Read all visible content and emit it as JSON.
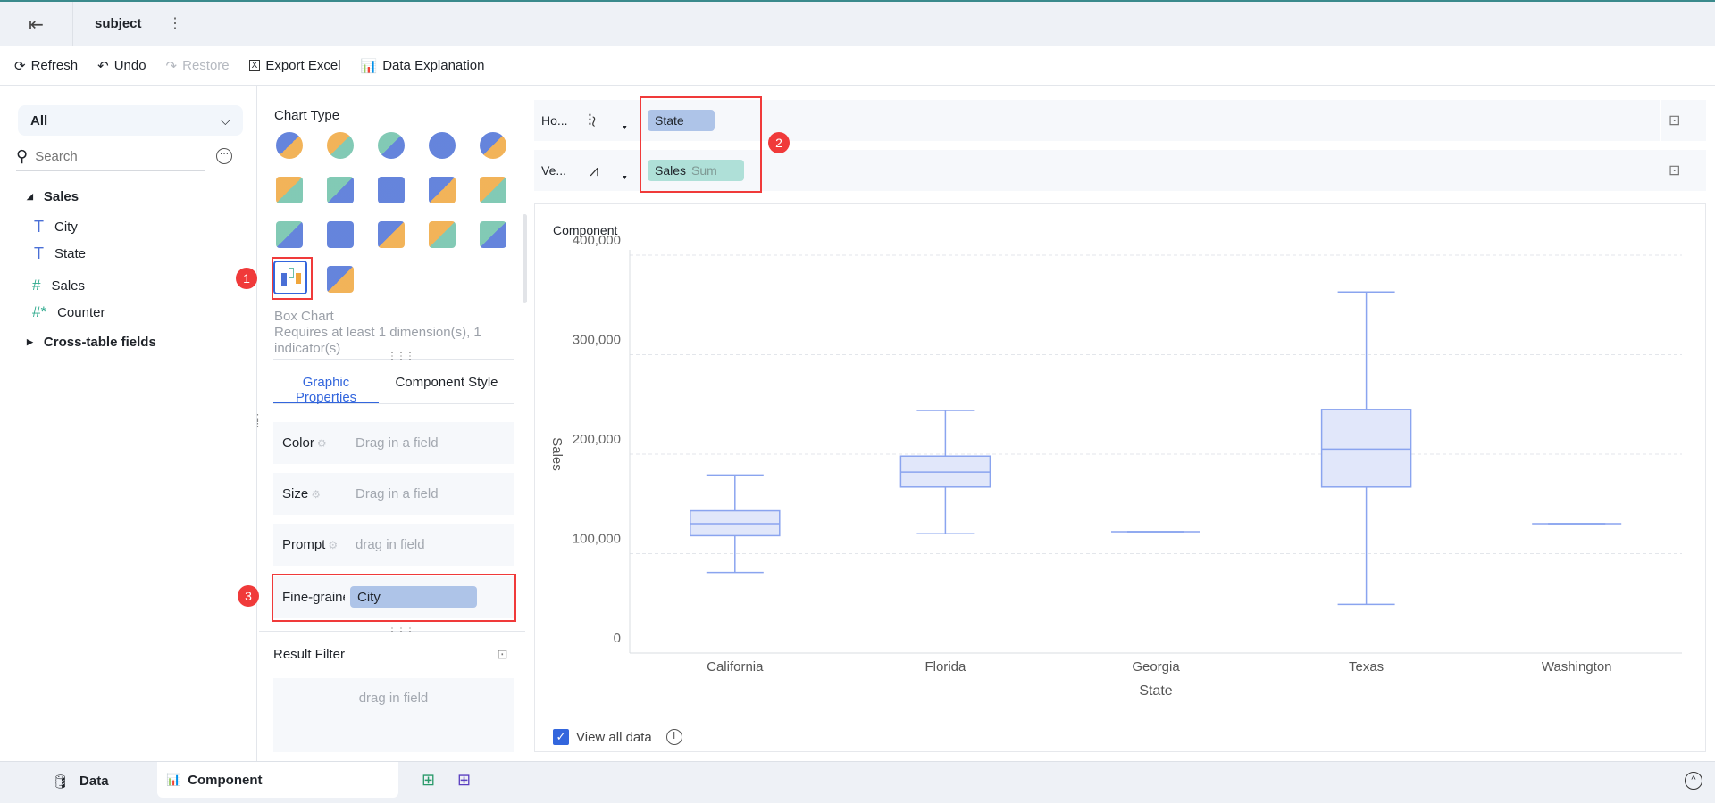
{
  "header": {
    "title": "subject"
  },
  "toolbar": {
    "refresh": "Refresh",
    "undo": "Undo",
    "restore": "Restore",
    "export": "Export Excel",
    "explain": "Data Explanation"
  },
  "left": {
    "dropdown": "All",
    "search_placeholder": "Search",
    "group": "Sales",
    "fields": [
      "City",
      "State",
      "Sales",
      "Counter"
    ],
    "cross": "Cross-table fields"
  },
  "middle": {
    "chart_type_label": "Chart Type",
    "selected_name": "Box Chart",
    "requirement": "Requires at least 1 dimension(s), 1 indicator(s)",
    "tabs": [
      "Graphic Properties",
      "Component Style"
    ],
    "props": [
      {
        "label": "Color",
        "placeholder": "Drag in a field"
      },
      {
        "label": "Size",
        "placeholder": "Drag in a field"
      },
      {
        "label": "Prompt",
        "placeholder": "drag in field"
      },
      {
        "label": "Fine-grained",
        "value": "City"
      }
    ],
    "result_filter": "Result Filter",
    "filter_placeholder": "drag in field"
  },
  "shelves": {
    "horizontal_label": "Ho...",
    "horizontal_field": "State",
    "vertical_label": "Ve...",
    "vertical_field": "Sales",
    "vertical_agg": "Sum"
  },
  "annotations": [
    "1",
    "2",
    "3"
  ],
  "card": {
    "title": "Component",
    "view_all": "View all data"
  },
  "bottom": {
    "data_tab": "Data",
    "component_tab": "Component"
  },
  "colors": {
    "accent": "#3366dd",
    "box_fill": "#e1e7fa",
    "box_stroke": "#8aa4ef",
    "annot": "#f03a3a"
  },
  "chart_data": {
    "type": "box",
    "title": "Component",
    "xlabel": "State",
    "ylabel": "Sales",
    "ylim": [
      0,
      400000
    ],
    "yticks": [
      "0",
      "100,000",
      "200,000",
      "300,000",
      "400,000"
    ],
    "grid": true,
    "categories": [
      "California",
      "Florida",
      "Georgia",
      "Texas",
      "Washington"
    ],
    "series": [
      {
        "name": "California",
        "min": 81000,
        "q1": 118000,
        "median": 130000,
        "q3": 143000,
        "max": 179000
      },
      {
        "name": "Florida",
        "min": 120000,
        "q1": 167000,
        "median": 182000,
        "q3": 198000,
        "max": 244000
      },
      {
        "name": "Georgia",
        "min": 122000,
        "q1": 122000,
        "median": 122000,
        "q3": 122000,
        "max": 122000
      },
      {
        "name": "Texas",
        "min": 49000,
        "q1": 167000,
        "median": 205000,
        "q3": 245000,
        "max": 363000
      },
      {
        "name": "Washington",
        "min": 130000,
        "q1": 130000,
        "median": 130000,
        "q3": 130000,
        "max": 130000
      }
    ]
  }
}
